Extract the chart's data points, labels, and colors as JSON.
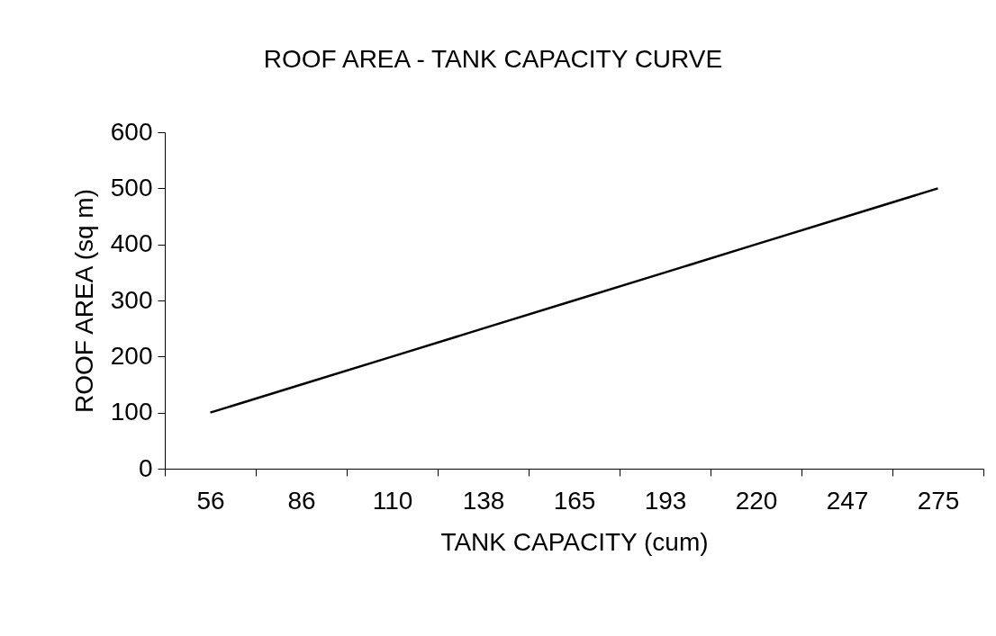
{
  "chart_data": {
    "type": "line",
    "title": "ROOF AREA - TANK CAPACITY CURVE",
    "xlabel": "TANK CAPACITY (cum)",
    "ylabel": "ROOF AREA (sq m)",
    "categories": [
      "56",
      "86",
      "110",
      "138",
      "165",
      "193",
      "220",
      "247",
      "275"
    ],
    "series": [
      {
        "color": "#000000",
        "values": [
          100,
          150,
          200,
          250,
          300,
          350,
          400,
          450,
          500
        ]
      }
    ],
    "ylim": [
      0,
      600
    ],
    "yticks": [
      0,
      100,
      200,
      300,
      400,
      500,
      600
    ],
    "grid": false,
    "marker": "none",
    "line_style": "solid"
  }
}
